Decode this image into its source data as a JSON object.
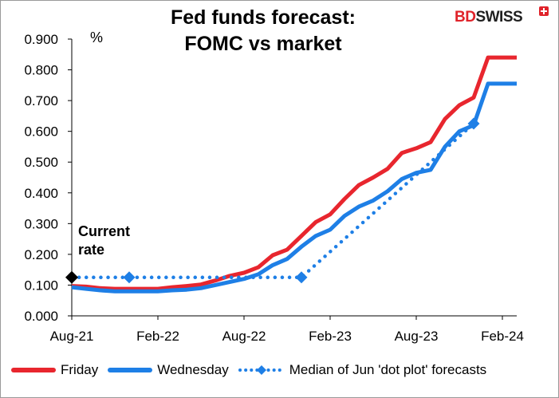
{
  "chart_data": {
    "type": "line",
    "title": "Fed funds forecast:\nFOMC vs market",
    "title_lines": [
      "Fed funds forecast:",
      "FOMC vs market"
    ],
    "ylabel": "%",
    "ylim": [
      0.0,
      0.9
    ],
    "yticks": [
      0.0,
      0.1,
      0.2,
      0.3,
      0.4,
      0.5,
      0.6,
      0.7,
      0.8,
      0.9
    ],
    "ytick_labels": [
      "0.000",
      "0.100",
      "0.200",
      "0.300",
      "0.400",
      "0.500",
      "0.600",
      "0.700",
      "0.800",
      "0.900"
    ],
    "xlim": [
      0,
      31
    ],
    "xticks": [
      0,
      6,
      12,
      18,
      24,
      30
    ],
    "xtick_labels": [
      "Aug-21",
      "Feb-22",
      "Aug-22",
      "Feb-23",
      "Aug-23",
      "Feb-24"
    ],
    "x_unit": "months since Aug-21",
    "grid": false,
    "legend_position": "bottom",
    "annotation": {
      "text_lines": [
        "Current",
        "rate"
      ],
      "x": 0,
      "y": 0.125,
      "marker": "diamond",
      "color": "#000000"
    },
    "series": [
      {
        "name": "Friday",
        "color": "#e8262e",
        "style": "solid",
        "x": [
          0,
          1,
          2,
          3,
          4,
          5,
          6,
          7,
          8,
          9,
          10,
          11,
          12,
          13,
          14,
          15,
          16,
          17,
          18,
          19,
          20,
          21,
          22,
          23,
          24,
          25,
          26,
          27,
          28,
          29,
          30,
          31
        ],
        "values": [
          0.097,
          0.095,
          0.09,
          0.088,
          0.088,
          0.088,
          0.088,
          0.093,
          0.097,
          0.102,
          0.115,
          0.13,
          0.14,
          0.158,
          0.197,
          0.215,
          0.26,
          0.305,
          0.33,
          0.38,
          0.425,
          0.45,
          0.478,
          0.53,
          0.545,
          0.565,
          0.64,
          0.685,
          0.71,
          0.84,
          0.84,
          0.84
        ]
      },
      {
        "name": "Wednesday",
        "color": "#1e7fe6",
        "style": "solid",
        "x": [
          0,
          1,
          2,
          3,
          4,
          5,
          6,
          7,
          8,
          9,
          10,
          11,
          12,
          13,
          14,
          15,
          16,
          17,
          18,
          19,
          20,
          21,
          22,
          23,
          24,
          25,
          26,
          27,
          28,
          29,
          30,
          31
        ],
        "values": [
          0.093,
          0.088,
          0.083,
          0.08,
          0.08,
          0.08,
          0.08,
          0.083,
          0.085,
          0.09,
          0.1,
          0.11,
          0.12,
          0.135,
          0.165,
          0.185,
          0.225,
          0.26,
          0.28,
          0.325,
          0.355,
          0.375,
          0.405,
          0.445,
          0.465,
          0.475,
          0.55,
          0.6,
          0.62,
          0.755,
          0.755,
          0.755
        ]
      },
      {
        "name": "Median of Jun 'dot plot' forecasts",
        "color": "#1e7fe6",
        "style": "dotted",
        "markers": "diamond",
        "x": [
          0,
          4,
          16,
          28
        ],
        "values": [
          0.125,
          0.125,
          0.125,
          0.625
        ]
      }
    ]
  }
}
